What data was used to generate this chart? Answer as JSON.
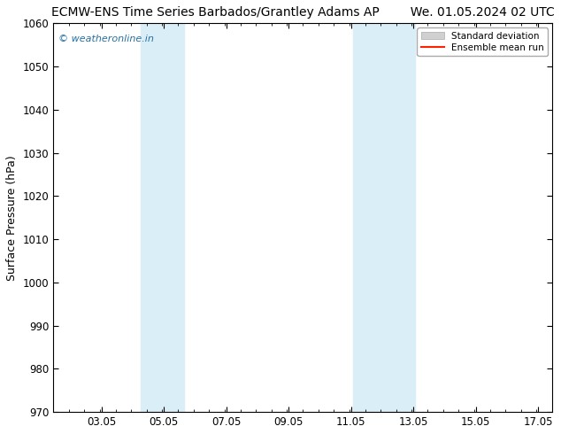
{
  "title": "ECMW-ENS Time Series Barbados/Grantley Adams AP        We. 01.05.2024 02 UTC",
  "ylabel": "Surface Pressure (hPa)",
  "ylim": [
    970,
    1060
  ],
  "yticks": [
    970,
    980,
    990,
    1000,
    1010,
    1020,
    1030,
    1040,
    1050,
    1060
  ],
  "xlim_start": 1.5,
  "xlim_end": 17.5,
  "xtick_labels": [
    "03.05",
    "05.05",
    "07.05",
    "09.05",
    "11.05",
    "13.05",
    "15.05",
    "17.05"
  ],
  "xtick_positions": [
    3.05,
    5.05,
    7.05,
    9.05,
    11.05,
    13.05,
    15.05,
    17.05
  ],
  "shaded_bands": [
    {
      "x_start": 4.3,
      "x_end": 5.7
    },
    {
      "x_start": 11.1,
      "x_end": 13.1
    }
  ],
  "shaded_color": "#daeef8",
  "watermark_text": "© weatheronline.in",
  "watermark_color": "#2471a3",
  "legend_std_label": "Standard deviation",
  "legend_mean_label": "Ensemble mean run",
  "legend_std_facecolor": "#d0d0d0",
  "legend_std_edgecolor": "#aaaaaa",
  "legend_mean_color": "#ff2200",
  "bg_color": "#ffffff",
  "spine_color": "#000000",
  "title_fontsize": 10,
  "label_fontsize": 9,
  "tick_fontsize": 8.5
}
